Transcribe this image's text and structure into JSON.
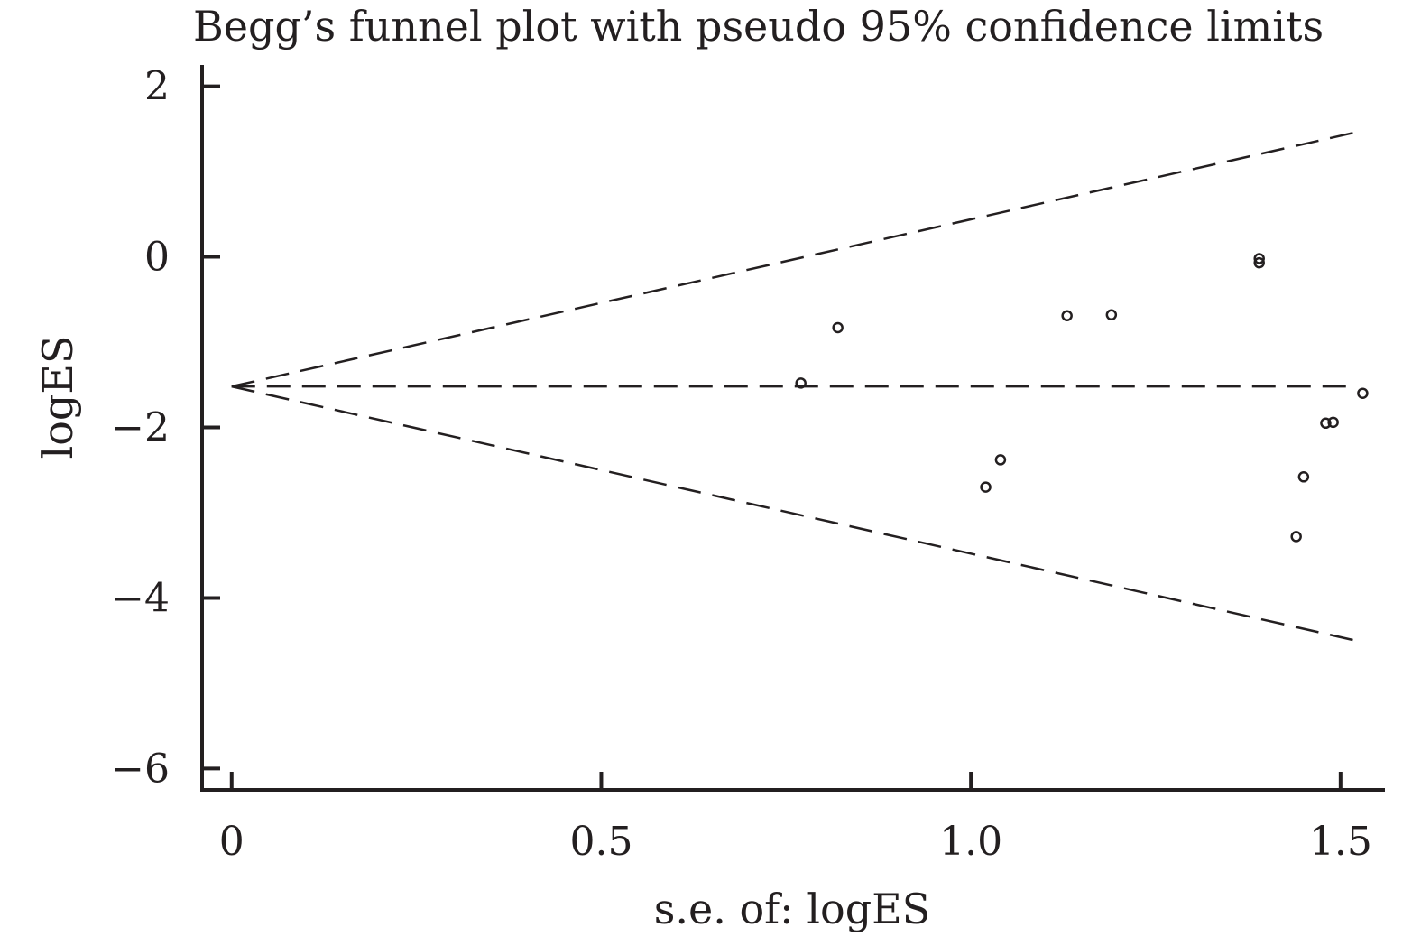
{
  "chart_data": {
    "type": "scatter",
    "title": "Begg’s funnel plot with pseudo 95% confidence limits",
    "xlabel": "s.e. of: logES",
    "ylabel": "logES",
    "xlim": [
      -0.04,
      1.56
    ],
    "ylim": [
      -6.25,
      2.25
    ],
    "x_ticks": [
      0,
      0.5,
      1.0,
      1.5
    ],
    "x_tick_labels": [
      "0",
      "0.5",
      "1.0",
      "1.5"
    ],
    "y_ticks": [
      2,
      0,
      -2,
      -4,
      -6
    ],
    "y_tick_labels": [
      "2",
      "0",
      "−2",
      "−4",
      "−6"
    ],
    "grid": false,
    "legend": "none",
    "pooled_estimate": -1.52,
    "ci_multiplier": 1.96,
    "ci_se_max": 1.52,
    "points": {
      "x": [
        0.77,
        0.82,
        1.02,
        1.04,
        1.13,
        1.19,
        1.39,
        1.39,
        1.44,
        1.45,
        1.48,
        1.49,
        1.53
      ],
      "y": [
        -1.48,
        -0.83,
        -2.7,
        -2.38,
        -0.69,
        -0.68,
        -0.07,
        -0.02,
        -3.28,
        -2.58,
        -1.95,
        -1.94,
        -1.6
      ]
    }
  }
}
